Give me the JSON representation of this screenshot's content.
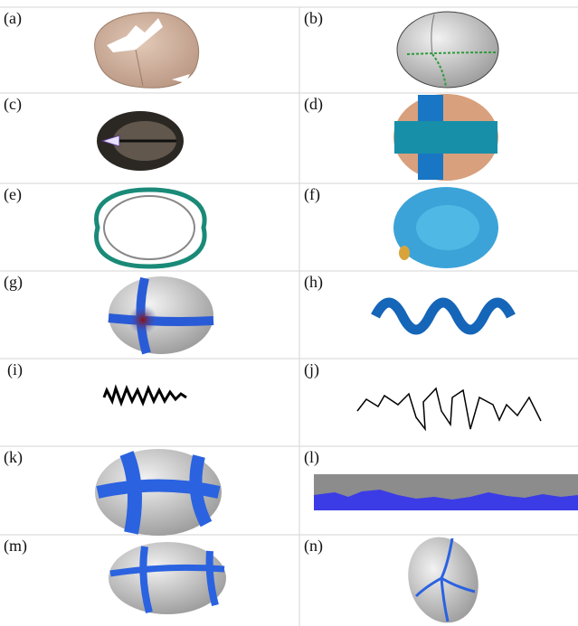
{
  "panels": [
    {
      "label": "(a)"
    },
    {
      "label": "(b)"
    },
    {
      "label": "(c)"
    },
    {
      "label": "(d)"
    },
    {
      "label": "(e)"
    },
    {
      "label": "(f)"
    },
    {
      "label": "(g)"
    },
    {
      "label": "(h)"
    },
    {
      "label": "(i)"
    },
    {
      "label": "(j)"
    },
    {
      "label": "(k)"
    },
    {
      "label": "(l)"
    },
    {
      "label": "(m)"
    },
    {
      "label": "(n)"
    }
  ]
}
